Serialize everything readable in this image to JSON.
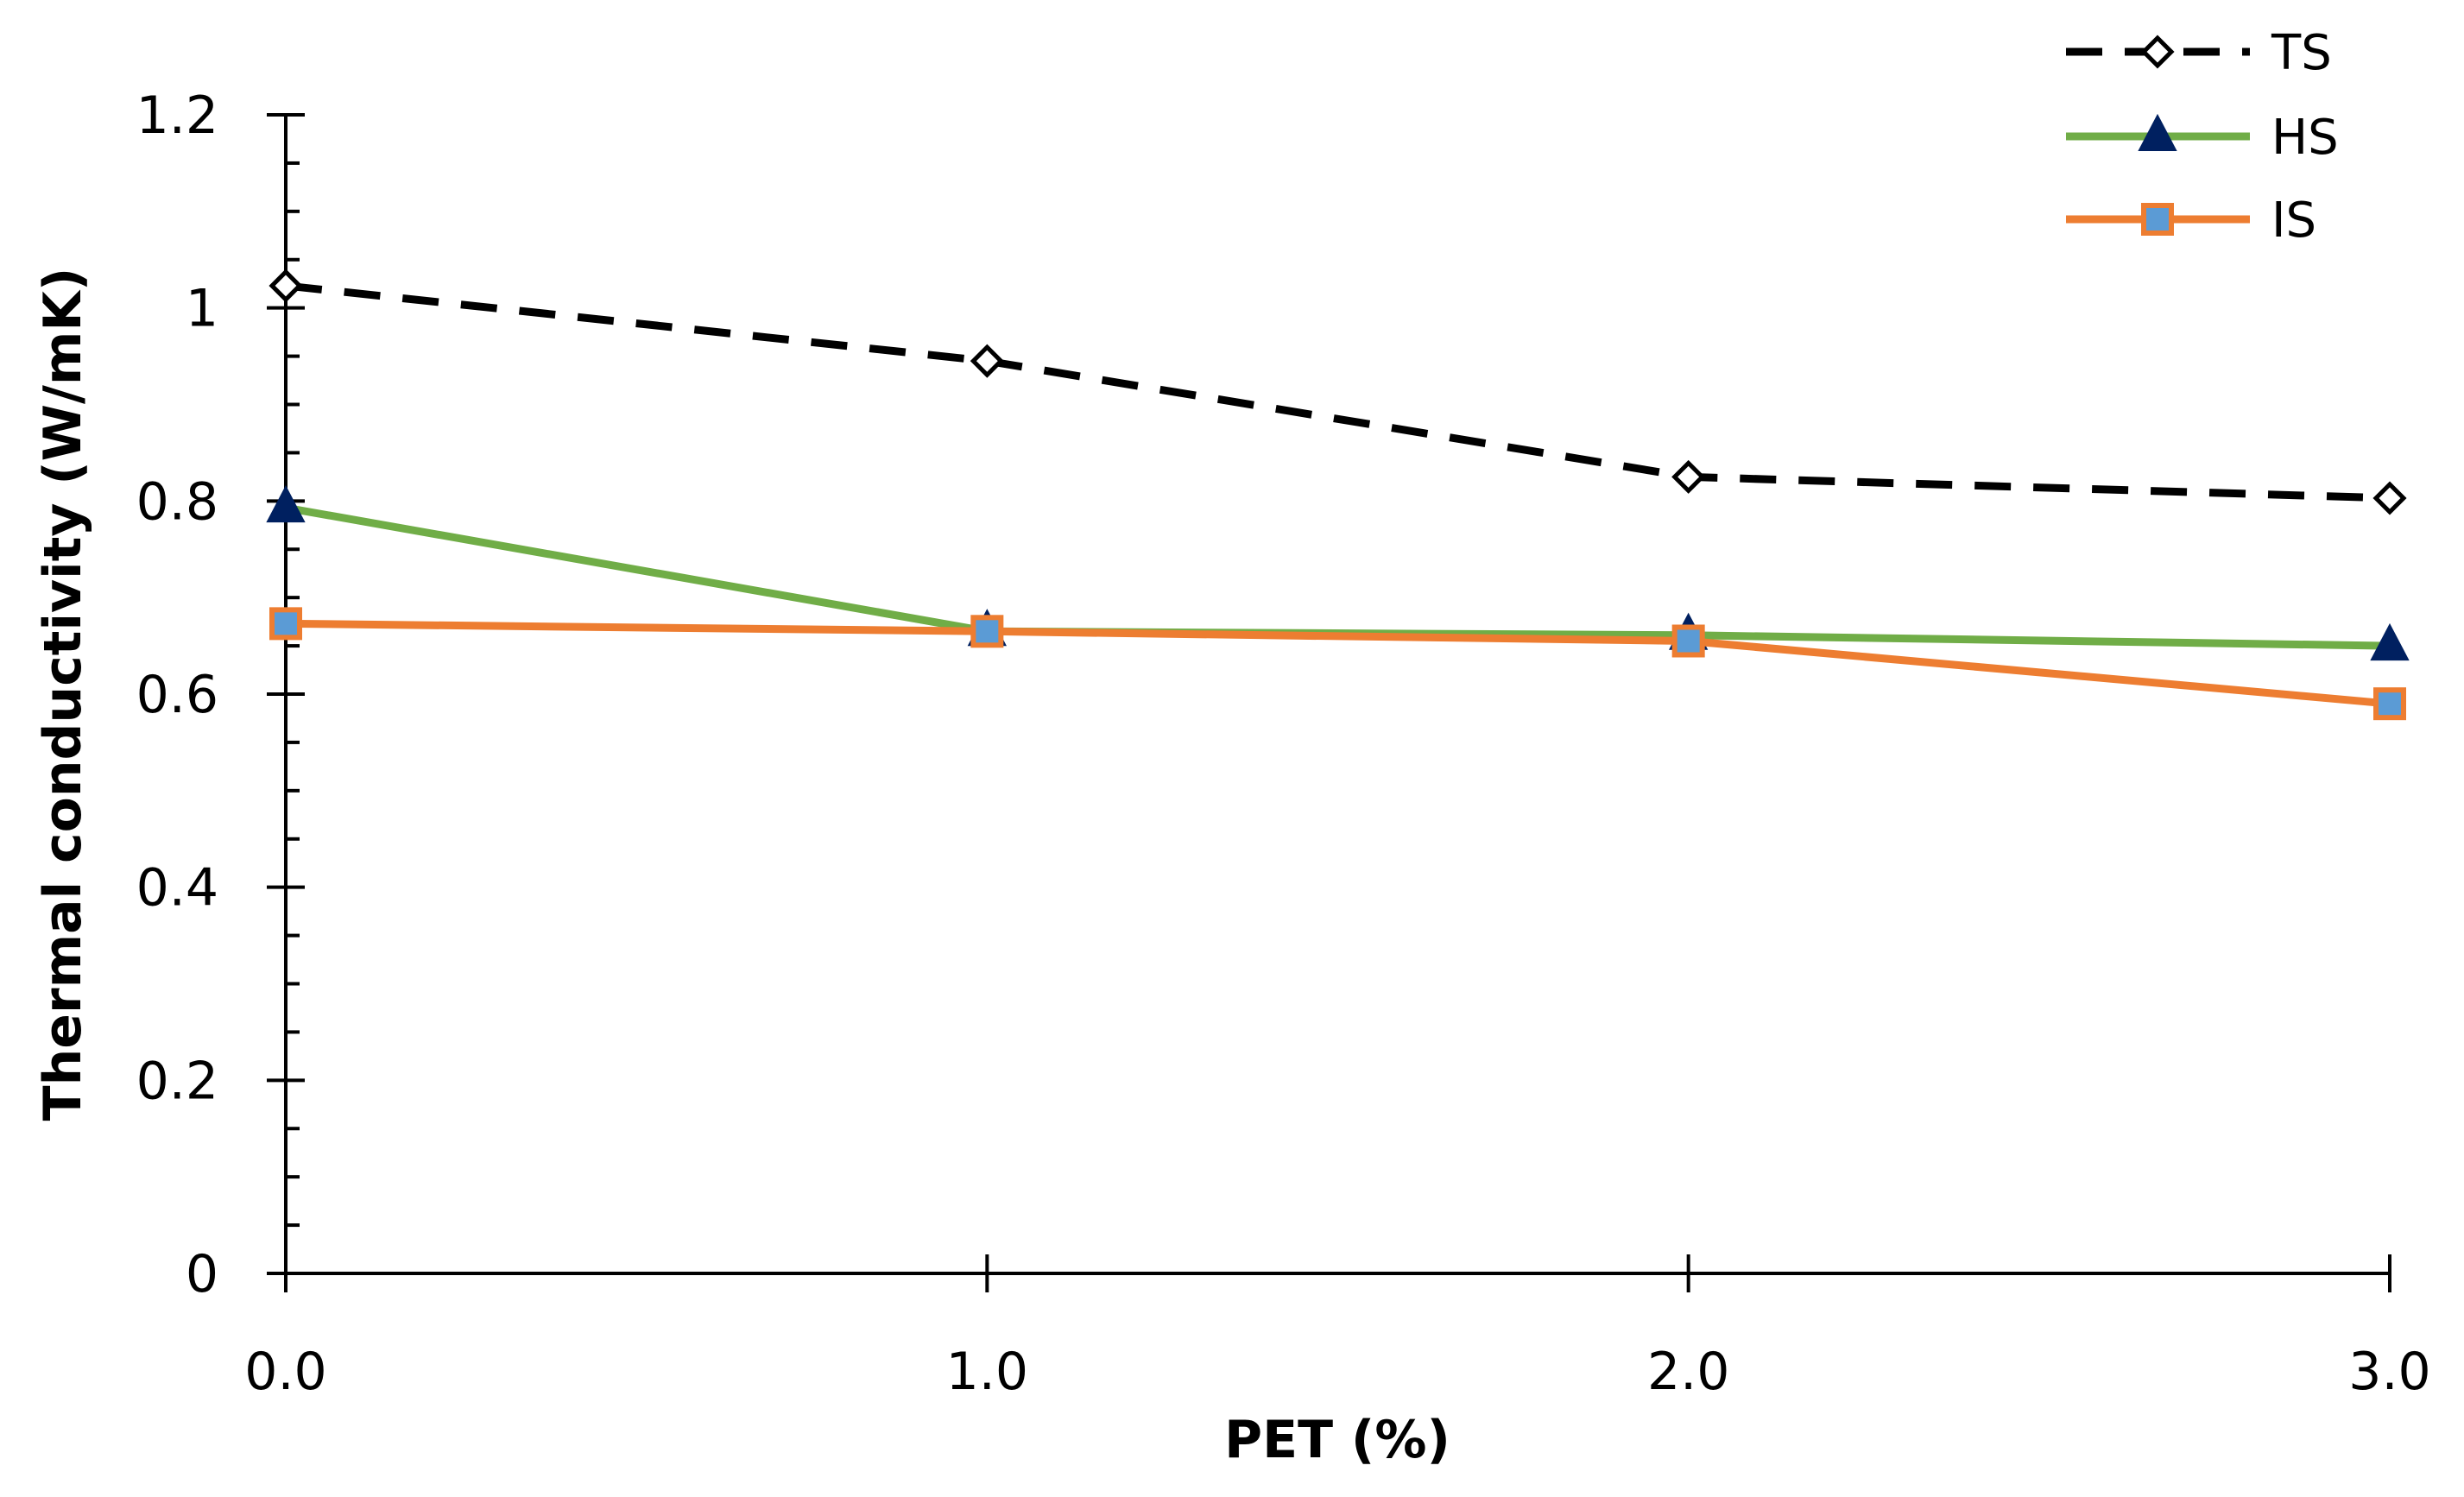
{
  "chart_data": {
    "type": "line",
    "title": "",
    "xlabel": "PET (%)",
    "ylabel": "Thermal conductivity (W/mK)",
    "x": [
      0,
      1,
      2,
      3
    ],
    "x_tick_labels": [
      "0.0",
      "1.0",
      "2.0",
      "3.0"
    ],
    "xlim": [
      0,
      3
    ],
    "y_ticks": [
      0,
      0.2,
      0.4,
      0.6,
      0.8,
      1,
      1.2
    ],
    "y_tick_labels": [
      "0",
      "0.2",
      "0.4",
      "0.6",
      "0.8",
      "1",
      "1.2"
    ],
    "ylim": [
      0,
      1.2
    ],
    "grid": false,
    "legend_position": "top-right",
    "series": [
      {
        "name": "TS",
        "values": [
          1.023,
          0.945,
          0.825,
          0.803
        ],
        "line_color": "#000000",
        "line_style": "dashed",
        "marker": "diamond",
        "marker_fill": "#ffffff",
        "marker_edge": "#000000"
      },
      {
        "name": "HS",
        "values": [
          0.793,
          0.665,
          0.661,
          0.65
        ],
        "line_color": "#70ad47",
        "line_style": "solid",
        "marker": "triangle",
        "marker_fill": "#002060",
        "marker_edge": "#002060"
      },
      {
        "name": "IS",
        "values": [
          0.673,
          0.665,
          0.655,
          0.59
        ],
        "line_color": "#ed7d31",
        "line_style": "solid",
        "marker": "square",
        "marker_fill": "#5b9bd5",
        "marker_edge": "#ed7d31"
      }
    ]
  }
}
